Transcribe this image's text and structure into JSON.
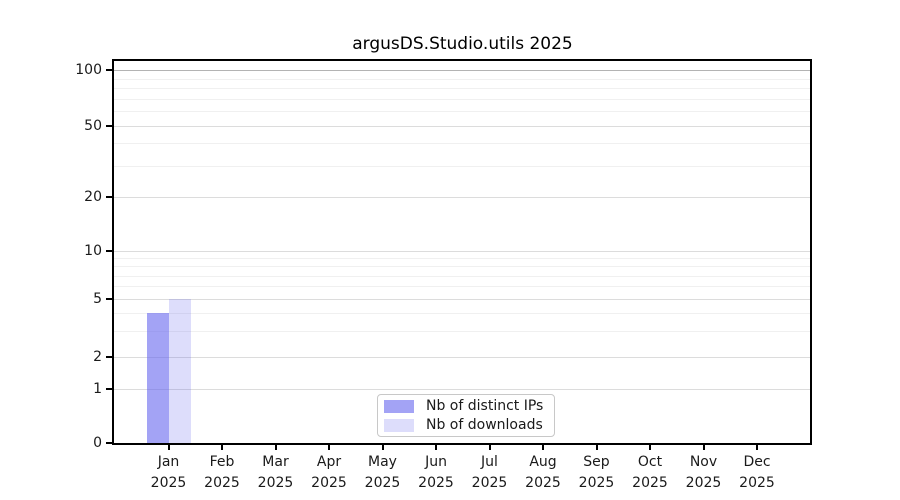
{
  "title": "argusDS.Studio.utils 2025",
  "legend": {
    "items": [
      {
        "label": "Nb of distinct IPs",
        "color_hex": "#a4a4f5",
        "color_rgba": "rgba(102,102,238,0.6)"
      },
      {
        "label": "Nb of downloads",
        "color_hex": "#ddddfb",
        "color_rgba": "rgba(102,102,238,0.22)"
      }
    ]
  },
  "axes": {
    "y_tick_labels": [
      "100",
      "50",
      "20",
      "10",
      "5",
      "2",
      "1",
      "0"
    ],
    "x_tick_labels_line1": [
      "Jan",
      "Feb",
      "Mar",
      "Apr",
      "May",
      "Jun",
      "Jul",
      "Aug",
      "Sep",
      "Oct",
      "Nov",
      "Dec"
    ],
    "x_tick_labels_line2": [
      "2025",
      "2025",
      "2025",
      "2025",
      "2025",
      "2025",
      "2025",
      "2025",
      "2025",
      "2025",
      "2025",
      "2025"
    ]
  },
  "chart_data": {
    "type": "bar",
    "title": "argusDS.Studio.utils 2025",
    "categories": [
      "Jan 2025",
      "Feb 2025",
      "Mar 2025",
      "Apr 2025",
      "May 2025",
      "Jun 2025",
      "Jul 2025",
      "Aug 2025",
      "Sep 2025",
      "Oct 2025",
      "Nov 2025",
      "Dec 2025"
    ],
    "series": [
      {
        "name": "Nb of distinct IPs",
        "color": "rgba(102,102,238,0.6)",
        "values": [
          4,
          0,
          0,
          0,
          0,
          0,
          0,
          0,
          0,
          0,
          0,
          0
        ]
      },
      {
        "name": "Nb of downloads",
        "color": "rgba(102,102,238,0.22)",
        "values": [
          5,
          0,
          0,
          0,
          0,
          0,
          0,
          0,
          0,
          0,
          0,
          0
        ]
      }
    ],
    "yscale": "symlog",
    "y_tick_values": [
      100,
      50,
      20,
      10,
      5,
      2,
      1,
      0
    ],
    "ylim": [
      0,
      120
    ],
    "grid": "horizontal major+minor log gridlines",
    "grid_colors": {
      "line_100": "#b3b3b3",
      "major": "#dcdcdc",
      "minor": "#f0f0f0"
    },
    "legend_position": "lower center inside plot"
  }
}
